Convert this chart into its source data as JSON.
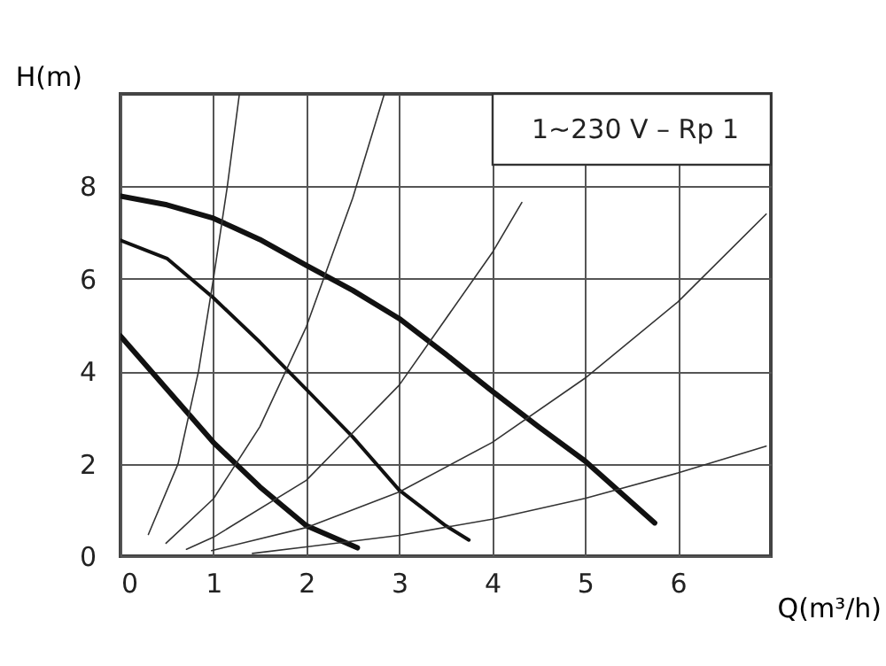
{
  "chart_data": {
    "type": "line",
    "xlabel": "Q(m³/h)",
    "ylabel": "H(m)",
    "annotations": [
      "1~230 V – Rp 1"
    ],
    "xlim": [
      0,
      7
    ],
    "xticks": [
      0,
      1,
      2,
      3,
      4,
      5,
      6
    ],
    "ylim": [
      0,
      10
    ],
    "yticks": [
      0,
      2,
      4,
      6,
      8
    ],
    "grid": true,
    "marker": "none",
    "line_style": "solid",
    "series": [
      {
        "color": "#111111",
        "x": [
          0,
          0.5,
          1,
          1.5,
          2,
          2.5,
          3,
          3.5,
          4,
          4.5,
          5,
          5.75
        ],
        "values": [
          7.79,
          7.6,
          7.31,
          6.85,
          6.29,
          5.75,
          5.14,
          4.37,
          3.57,
          2.8,
          2.06,
          0.72
        ]
      },
      {
        "color": "#111111",
        "x": [
          0,
          0.5,
          1,
          1.5,
          2,
          2.5,
          3,
          3.5,
          3.75
        ],
        "values": [
          6.83,
          6.44,
          5.59,
          4.63,
          3.61,
          2.58,
          1.43,
          0.66,
          0.35
        ]
      },
      {
        "color": "#111111",
        "x": [
          0,
          0.5,
          1,
          1.5,
          2,
          2.55
        ],
        "values": [
          4.76,
          3.61,
          2.46,
          1.5,
          0.66,
          0.18
        ]
      },
      {
        "color": "#333333",
        "x": [
          0.3,
          0.62,
          0.84,
          1,
          1.15,
          1.28
        ],
        "values": [
          0.47,
          2,
          4,
          6,
          8,
          10
        ]
      },
      {
        "color": "#333333",
        "x": [
          0.49,
          1,
          1.5,
          2,
          2.5,
          2.84
        ],
        "values": [
          0.28,
          1.24,
          2.8,
          4.96,
          7.75,
          10
        ]
      },
      {
        "color": "#333333",
        "x": [
          0.71,
          1,
          2,
          3,
          4,
          4.32
        ],
        "values": [
          0.15,
          0.41,
          1.64,
          3.7,
          6.56,
          7.65
        ]
      },
      {
        "color": "#333333",
        "x": [
          0.98,
          2,
          3,
          4,
          5,
          6,
          6.95
        ],
        "values": [
          0.12,
          0.62,
          1.39,
          2.46,
          3.85,
          5.5,
          7.4
        ]
      },
      {
        "color": "#333333",
        "x": [
          1.42,
          2,
          3,
          4,
          5,
          6,
          6.95
        ],
        "values": [
          0.06,
          0.2,
          0.45,
          0.8,
          1.25,
          1.8,
          2.38
        ]
      }
    ]
  }
}
